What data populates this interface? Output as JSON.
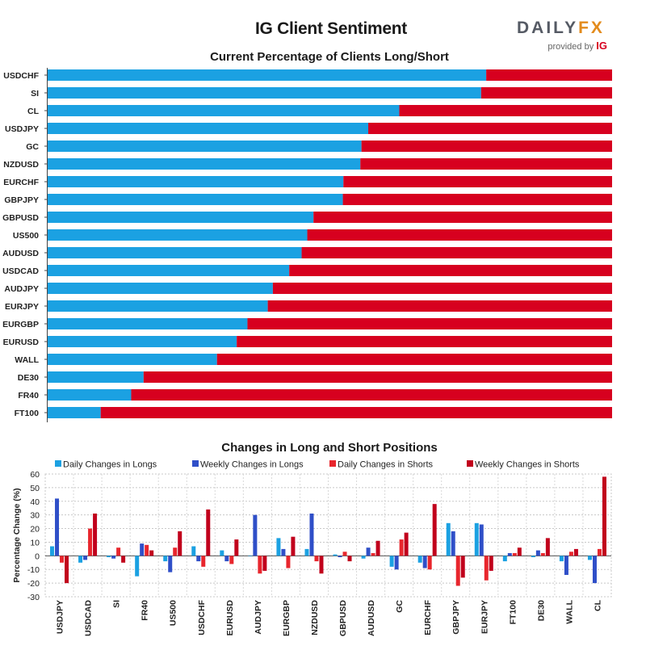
{
  "header": {
    "title": "IG Client Sentiment",
    "logo_main_a": "DAILY",
    "logo_main_b": "FX",
    "logo_sub": "provided by",
    "logo_sub_brand": "IG"
  },
  "colors": {
    "long": "#1ba1e2",
    "short": "#d7001f",
    "daily_long": "#1ba1e2",
    "weekly_long": "#2f4fc8",
    "daily_short": "#e8262d",
    "weekly_short": "#c1001c"
  },
  "chart_data": [
    {
      "type": "bar",
      "orientation": "horizontal",
      "stacked": true,
      "title": "Current Percentage of Clients Long/Short",
      "xlim": [
        0,
        100
      ],
      "categories": [
        "USDCHF",
        "SI",
        "CL",
        "USDJPY",
        "GC",
        "NZDUSD",
        "EURCHF",
        "GBPJPY",
        "GBPUSD",
        "US500",
        "AUDUSD",
        "USDCAD",
        "AUDJPY",
        "EURJPY",
        "EURGBP",
        "EURUSD",
        "WALL",
        "DE30",
        "FR40",
        "FT100"
      ],
      "series": [
        {
          "values": [
            77.7,
            76.8,
            62.3,
            56.8,
            55.6,
            55.4,
            52.4,
            52.3,
            47.1,
            46.0,
            45.0,
            42.8,
            39.9,
            39.0,
            35.4,
            33.5,
            30.0,
            17.0,
            14.8,
            9.4
          ]
        },
        {
          "values": [
            22.3,
            23.2,
            37.7,
            43.2,
            44.4,
            44.6,
            47.6,
            47.7,
            52.9,
            54.0,
            55.0,
            57.2,
            60.1,
            61.0,
            64.6,
            66.5,
            70.0,
            83.0,
            85.2,
            90.6
          ]
        }
      ]
    },
    {
      "type": "bar",
      "title": "Changes in Long and Short Positions",
      "ylabel": "Percentage Change (%)",
      "ylim": [
        -30,
        60
      ],
      "yticks": [
        "-30",
        "-20",
        "-10",
        "0",
        "10",
        "20",
        "30",
        "40",
        "50",
        "60"
      ],
      "grid": true,
      "legend": "top",
      "categories": [
        "USDJPY",
        "USDCAD",
        "SI",
        "FR40",
        "US500",
        "USDCHF",
        "EURUSD",
        "AUDJPY",
        "EURGBP",
        "NZDUSD",
        "GBPUSD",
        "AUDUSD",
        "GC",
        "EURCHF",
        "GBPJPY",
        "EURJPY",
        "FT100",
        "DE30",
        "WALL",
        "CL"
      ],
      "series": [
        {
          "name": "Daily Changes in Longs",
          "values": [
            7,
            -5,
            -1,
            -15,
            -4,
            7,
            4,
            0,
            13,
            5,
            1,
            -2,
            -8,
            -5,
            24,
            24,
            -4,
            -1,
            -4,
            -3
          ]
        },
        {
          "name": "Weekly Changes in Longs",
          "values": [
            42,
            -3,
            -2,
            9,
            -12,
            -4,
            -4,
            30,
            5,
            31,
            -1,
            6,
            -10,
            -9,
            18,
            23,
            2,
            4,
            -14,
            -20
          ]
        },
        {
          "name": "Daily Changes in Shorts",
          "values": [
            -5,
            20,
            6,
            8,
            6,
            -8,
            -6,
            -13,
            -9,
            -4,
            3,
            2,
            12,
            -10,
            -22,
            -18,
            2,
            2,
            3,
            5
          ]
        },
        {
          "name": "Weekly Changes in Shorts",
          "values": [
            -20,
            31,
            -5,
            4,
            18,
            34,
            12,
            -11,
            14,
            -13,
            -4,
            11,
            17,
            38,
            -16,
            -11,
            6,
            13,
            5,
            58
          ]
        }
      ]
    }
  ]
}
